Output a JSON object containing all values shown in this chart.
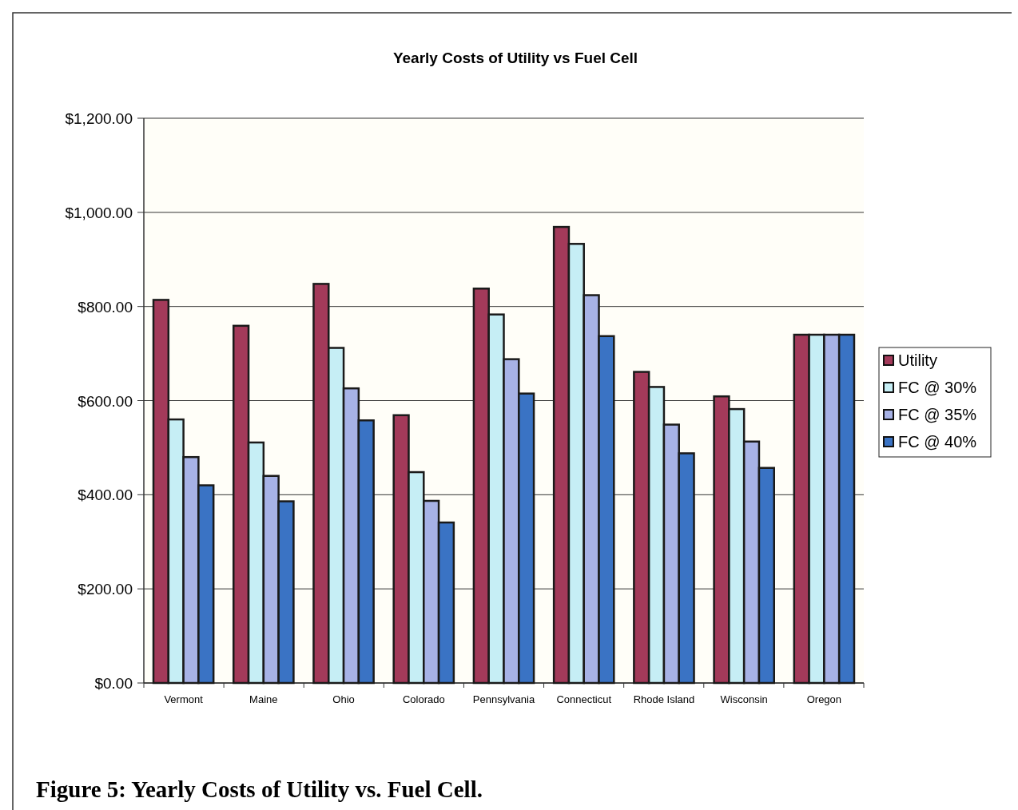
{
  "chart_data": {
    "type": "bar",
    "title": "Yearly Costs of Utility vs Fuel Cell",
    "categories": [
      "Vermont",
      "Maine",
      "Ohio",
      "Colorado",
      "Pennsylvania",
      "Connecticut",
      "Rhode Island",
      "Wisconsin",
      "Oregon"
    ],
    "series": [
      {
        "name": "Utility",
        "color": "#a33a5a",
        "values": [
          814,
          759,
          848,
          569,
          838,
          969,
          661,
          609,
          740
        ]
      },
      {
        "name": "FC @ 30%",
        "color": "#c6eef5",
        "values": [
          560,
          511,
          712,
          448,
          783,
          933,
          629,
          582,
          740
        ]
      },
      {
        "name": "FC @ 35%",
        "color": "#a7b2e6",
        "values": [
          480,
          440,
          626,
          387,
          688,
          824,
          549,
          513,
          740
        ]
      },
      {
        "name": "FC @ 40%",
        "color": "#3a73c4",
        "values": [
          420,
          386,
          558,
          341,
          615,
          737,
          488,
          457,
          740
        ]
      }
    ],
    "ylim": [
      0,
      1200
    ],
    "yticks": [
      {
        "value": 0,
        "label": "$0.00"
      },
      {
        "value": 200,
        "label": "$200.00"
      },
      {
        "value": 400,
        "label": "$400.00"
      },
      {
        "value": 600,
        "label": "$600.00"
      },
      {
        "value": 800,
        "label": "$800.00"
      },
      {
        "value": 1000,
        "label": "$1,000.00"
      },
      {
        "value": 1200,
        "label": "$1,200.00"
      }
    ],
    "grid": "y",
    "legend": "right",
    "annotations": [
      "Figure 5: Yearly Costs of Utility vs. Fuel Cell."
    ]
  }
}
